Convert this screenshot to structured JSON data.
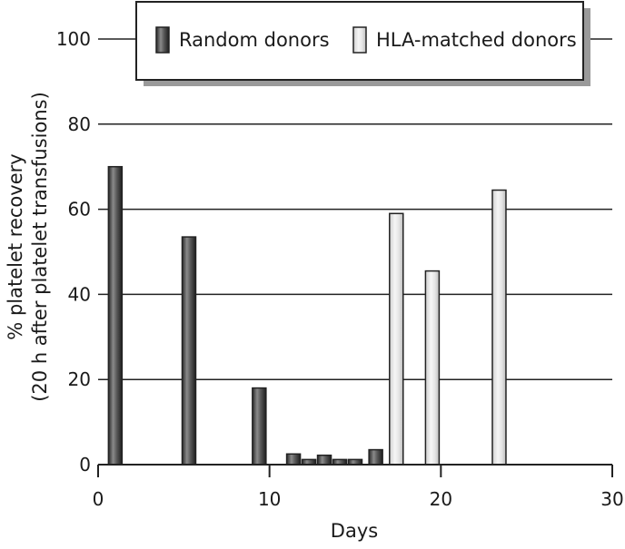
{
  "chart_data": {
    "type": "bar",
    "xlabel": "Days",
    "ylabel_line1": "% platelet recovery",
    "ylabel_line2": "(20 h after platelet transfusions)",
    "xlim": [
      0,
      30
    ],
    "ylim": [
      0,
      100
    ],
    "xticks": [
      0,
      10,
      20,
      30
    ],
    "yticks": [
      0,
      20,
      40,
      60,
      80,
      100
    ],
    "grid": "horizontal",
    "legend_position": "top",
    "series": [
      {
        "name": "Random donors",
        "color": "#555555",
        "points": [
          {
            "x": 1,
            "y": 70
          },
          {
            "x": 5.3,
            "y": 53.5
          },
          {
            "x": 9.4,
            "y": 18
          },
          {
            "x": 11.4,
            "y": 2.5
          },
          {
            "x": 12.3,
            "y": 1.2
          },
          {
            "x": 13.2,
            "y": 2.2
          },
          {
            "x": 14.1,
            "y": 1.2
          },
          {
            "x": 15,
            "y": 1.2
          },
          {
            "x": 16.2,
            "y": 3.5
          }
        ]
      },
      {
        "name": "HLA-matched donors",
        "color": "#e0e0e0",
        "points": [
          {
            "x": 17.4,
            "y": 59
          },
          {
            "x": 19.5,
            "y": 45.5
          },
          {
            "x": 23.4,
            "y": 64.5
          }
        ]
      }
    ]
  }
}
